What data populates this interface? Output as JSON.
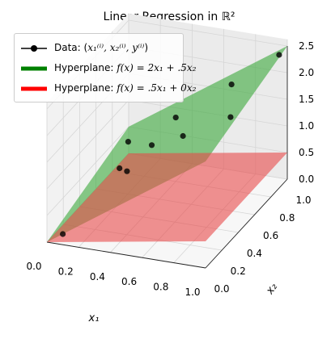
{
  "chart_data": {
    "type": "scatter",
    "title": "Linear Regression in ℝ²",
    "axes": {
      "x1": {
        "label": "x₁",
        "range": [
          0,
          1
        ],
        "ticks": [
          "0.0",
          "0.2",
          "0.4",
          "0.6",
          "0.8",
          "1.0"
        ]
      },
      "x2": {
        "label": "x₂",
        "range": [
          0,
          1
        ],
        "ticks": [
          "0.0",
          "0.2",
          "0.4",
          "0.6",
          "0.8",
          "1.0"
        ]
      },
      "z": {
        "label": "",
        "range": [
          0,
          2.5
        ],
        "ticks": [
          "0.0",
          "0.5",
          "1.0",
          "1.5",
          "2.0",
          "2.5"
        ]
      }
    },
    "grid": true,
    "legend_position": "top-left",
    "series": [
      {
        "name": "Data: (x₁⁽ⁱ⁾, x₂⁽ⁱ⁾, y⁽ⁱ⁾)",
        "kind": "points",
        "color": "#000000",
        "points": [
          [
            0.1,
            0.0,
            0.2
          ],
          [
            0.2,
            0.5,
            0.65
          ],
          [
            0.1,
            0.8,
            0.6
          ],
          [
            0.3,
            0.7,
            0.8
          ],
          [
            0.35,
            0.3,
            1.0
          ],
          [
            0.4,
            0.8,
            1.2
          ],
          [
            0.6,
            0.5,
            1.45
          ],
          [
            0.7,
            0.9,
            1.8
          ],
          [
            0.9,
            0.5,
            1.95
          ],
          [
            1.0,
            0.9,
            2.5
          ]
        ]
      },
      {
        "name": "Hyperplane: f(x) = 2x₁ + .5x₂",
        "kind": "plane",
        "a": 2,
        "b": 0.5,
        "color": "#008000"
      },
      {
        "name": "Hyperplane: f(x) = .5x₁ + 0x₂",
        "kind": "plane",
        "a": 0.5,
        "b": 0,
        "color": "#ff0000"
      }
    ]
  },
  "legend": [
    {
      "label_pre": "Data: (",
      "math": "x₁⁽ⁱ⁾, x₂⁽ⁱ⁾, y⁽ⁱ⁾",
      "label_post": ")"
    },
    {
      "label_pre": "Hyperplane: ",
      "math": "f(x) = 2x₁ + .5x₂",
      "label_post": ""
    },
    {
      "label_pre": "Hyperplane: ",
      "math": "f(x) = .5x₁ + 0x₂",
      "label_post": ""
    }
  ],
  "colors": {
    "data": "#000000",
    "green": "#008000",
    "red": "#ff0000",
    "plane_green_fill": "#3aa83a",
    "plane_red_fill": "#e84a4a"
  }
}
